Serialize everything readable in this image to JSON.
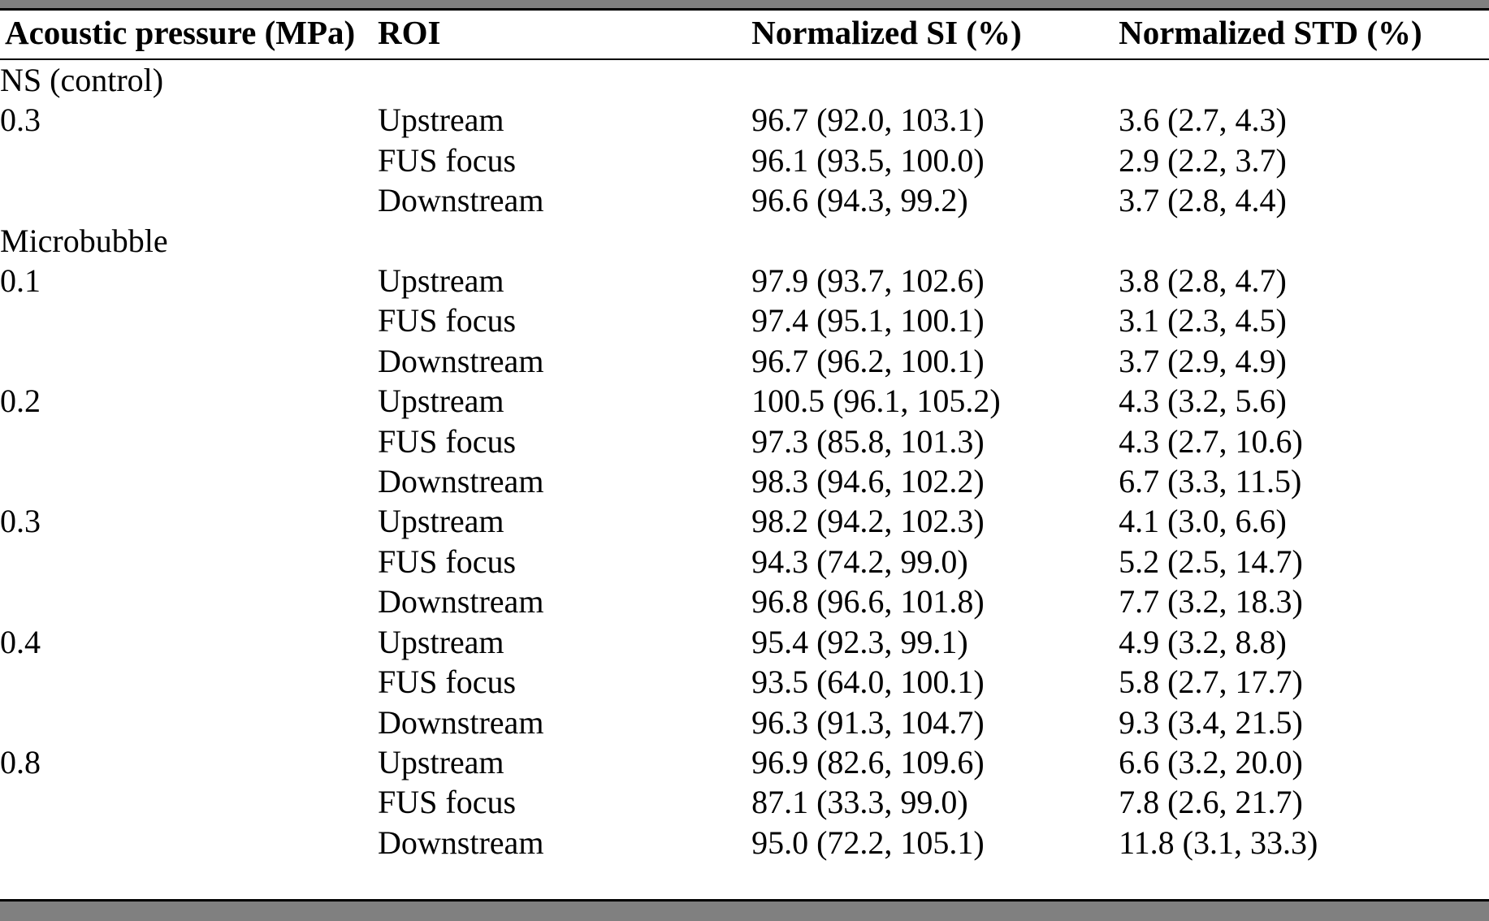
{
  "page": {
    "background": "#ffffff",
    "separator_bar_color": "#808080",
    "text_color": "#000000",
    "rule_color": "#000000"
  },
  "table": {
    "columns": [
      "Acoustic pressure (MPa)",
      "ROI",
      "Normalized SI (%)",
      "Normalized STD (%)"
    ],
    "sections": [
      {
        "group": "NS (control)",
        "rows": [
          {
            "pressure": "0.3",
            "roi": "Upstream",
            "si": "96.7 (92.0, 103.1)",
            "std": "3.6 (2.7, 4.3)"
          },
          {
            "pressure": "",
            "roi": "FUS focus",
            "si": "96.1 (93.5, 100.0)",
            "std": "2.9 (2.2, 3.7)"
          },
          {
            "pressure": "",
            "roi": "Downstream",
            "si": "96.6 (94.3, 99.2)",
            "std": "3.7 (2.8, 4.4)"
          }
        ]
      },
      {
        "group": "Microbubble",
        "rows": [
          {
            "pressure": "0.1",
            "roi": "Upstream",
            "si": "97.9 (93.7, 102.6)",
            "std": "3.8 (2.8, 4.7)"
          },
          {
            "pressure": "",
            "roi": "FUS focus",
            "si": "97.4 (95.1, 100.1)",
            "std": "3.1 (2.3, 4.5)"
          },
          {
            "pressure": "",
            "roi": "Downstream",
            "si": "96.7 (96.2, 100.1)",
            "std": "3.7 (2.9, 4.9)"
          },
          {
            "pressure": "0.2",
            "roi": "Upstream",
            "si": "100.5 (96.1, 105.2)",
            "std": "4.3 (3.2, 5.6)"
          },
          {
            "pressure": "",
            "roi": "FUS focus",
            "si": "97.3 (85.8, 101.3)",
            "std": "4.3 (2.7, 10.6)"
          },
          {
            "pressure": "",
            "roi": "Downstream",
            "si": "98.3 (94.6, 102.2)",
            "std": "6.7 (3.3, 11.5)"
          },
          {
            "pressure": "0.3",
            "roi": "Upstream",
            "si": "98.2 (94.2, 102.3)",
            "std": "4.1 (3.0, 6.6)"
          },
          {
            "pressure": "",
            "roi": "FUS focus",
            "si": "94.3 (74.2, 99.0)",
            "std": "5.2 (2.5, 14.7)"
          },
          {
            "pressure": "",
            "roi": "Downstream",
            "si": "96.8 (96.6, 101.8)",
            "std": "7.7 (3.2, 18.3)"
          },
          {
            "pressure": "0.4",
            "roi": "Upstream",
            "si": "95.4 (92.3, 99.1)",
            "std": "4.9 (3.2, 8.8)"
          },
          {
            "pressure": "",
            "roi": "FUS focus",
            "si": "93.5 (64.0, 100.1)",
            "std": "5.8 (2.7, 17.7)"
          },
          {
            "pressure": "",
            "roi": "Downstream",
            "si": "96.3 (91.3, 104.7)",
            "std": "9.3 (3.4, 21.5)"
          },
          {
            "pressure": "0.8",
            "roi": "Upstream",
            "si": "96.9 (82.6, 109.6)",
            "std": "6.6 (3.2, 20.0)"
          },
          {
            "pressure": "",
            "roi": "FUS focus",
            "si": "87.1 (33.3, 99.0)",
            "std": "7.8 (2.6, 21.7)"
          },
          {
            "pressure": "",
            "roi": "Downstream",
            "si": "95.0 (72.2, 105.1)",
            "std": "11.8 (3.1, 33.3)"
          }
        ]
      }
    ]
  }
}
